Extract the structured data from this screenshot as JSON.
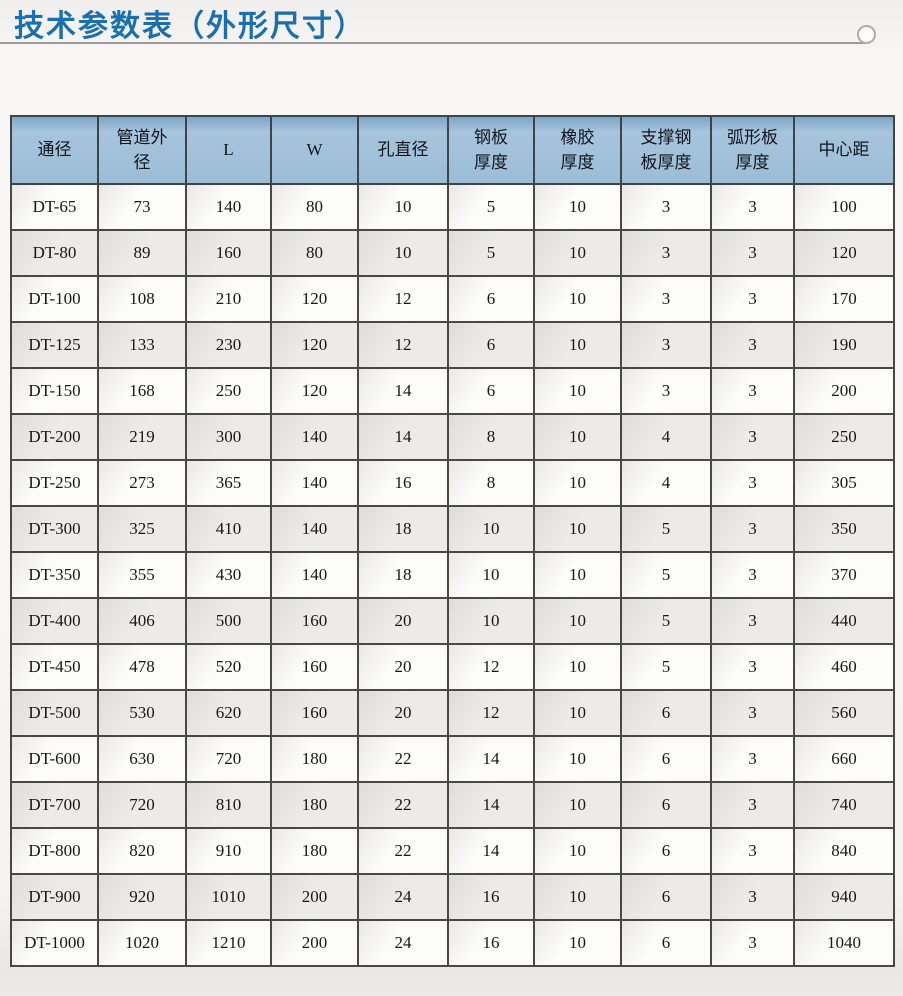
{
  "page": {
    "title": "技术参数表（外形尺寸）"
  },
  "colors": {
    "title_blue": "#1a6fb0",
    "header_bg": "#9dbdd7",
    "row_alt_bg": "#e9e8e6",
    "border": "#4c4841",
    "underline": "#9c9c9c"
  },
  "table": {
    "headers": [
      "通径",
      "管道外\n径",
      "L",
      "W",
      "孔直径",
      "钢板\n厚度",
      "橡胶\n厚度",
      "支撑钢\n板厚度",
      "弧形板\n厚度",
      "中心距"
    ],
    "rows": [
      [
        "DT-65",
        "73",
        "140",
        "80",
        "10",
        "5",
        "10",
        "3",
        "3",
        "100"
      ],
      [
        "DT-80",
        "89",
        "160",
        "80",
        "10",
        "5",
        "10",
        "3",
        "3",
        "120"
      ],
      [
        "DT-100",
        "108",
        "210",
        "120",
        "12",
        "6",
        "10",
        "3",
        "3",
        "170"
      ],
      [
        "DT-125",
        "133",
        "230",
        "120",
        "12",
        "6",
        "10",
        "3",
        "3",
        "190"
      ],
      [
        "DT-150",
        "168",
        "250",
        "120",
        "14",
        "6",
        "10",
        "3",
        "3",
        "200"
      ],
      [
        "DT-200",
        "219",
        "300",
        "140",
        "14",
        "8",
        "10",
        "4",
        "3",
        "250"
      ],
      [
        "DT-250",
        "273",
        "365",
        "140",
        "16",
        "8",
        "10",
        "4",
        "3",
        "305"
      ],
      [
        "DT-300",
        "325",
        "410",
        "140",
        "18",
        "10",
        "10",
        "5",
        "3",
        "350"
      ],
      [
        "DT-350",
        "355",
        "430",
        "140",
        "18",
        "10",
        "10",
        "5",
        "3",
        "370"
      ],
      [
        "DT-400",
        "406",
        "500",
        "160",
        "20",
        "10",
        "10",
        "5",
        "3",
        "440"
      ],
      [
        "DT-450",
        "478",
        "520",
        "160",
        "20",
        "12",
        "10",
        "5",
        "3",
        "460"
      ],
      [
        "DT-500",
        "530",
        "620",
        "160",
        "20",
        "12",
        "10",
        "6",
        "3",
        "560"
      ],
      [
        "DT-600",
        "630",
        "720",
        "180",
        "22",
        "14",
        "10",
        "6",
        "3",
        "660"
      ],
      [
        "DT-700",
        "720",
        "810",
        "180",
        "22",
        "14",
        "10",
        "6",
        "3",
        "740"
      ],
      [
        "DT-800",
        "820",
        "910",
        "180",
        "22",
        "14",
        "10",
        "6",
        "3",
        "840"
      ],
      [
        "DT-900",
        "920",
        "1010",
        "200",
        "24",
        "16",
        "10",
        "6",
        "3",
        "940"
      ],
      [
        "DT-1000",
        "1020",
        "1210",
        "200",
        "24",
        "16",
        "10",
        "6",
        "3",
        "1040"
      ]
    ]
  }
}
